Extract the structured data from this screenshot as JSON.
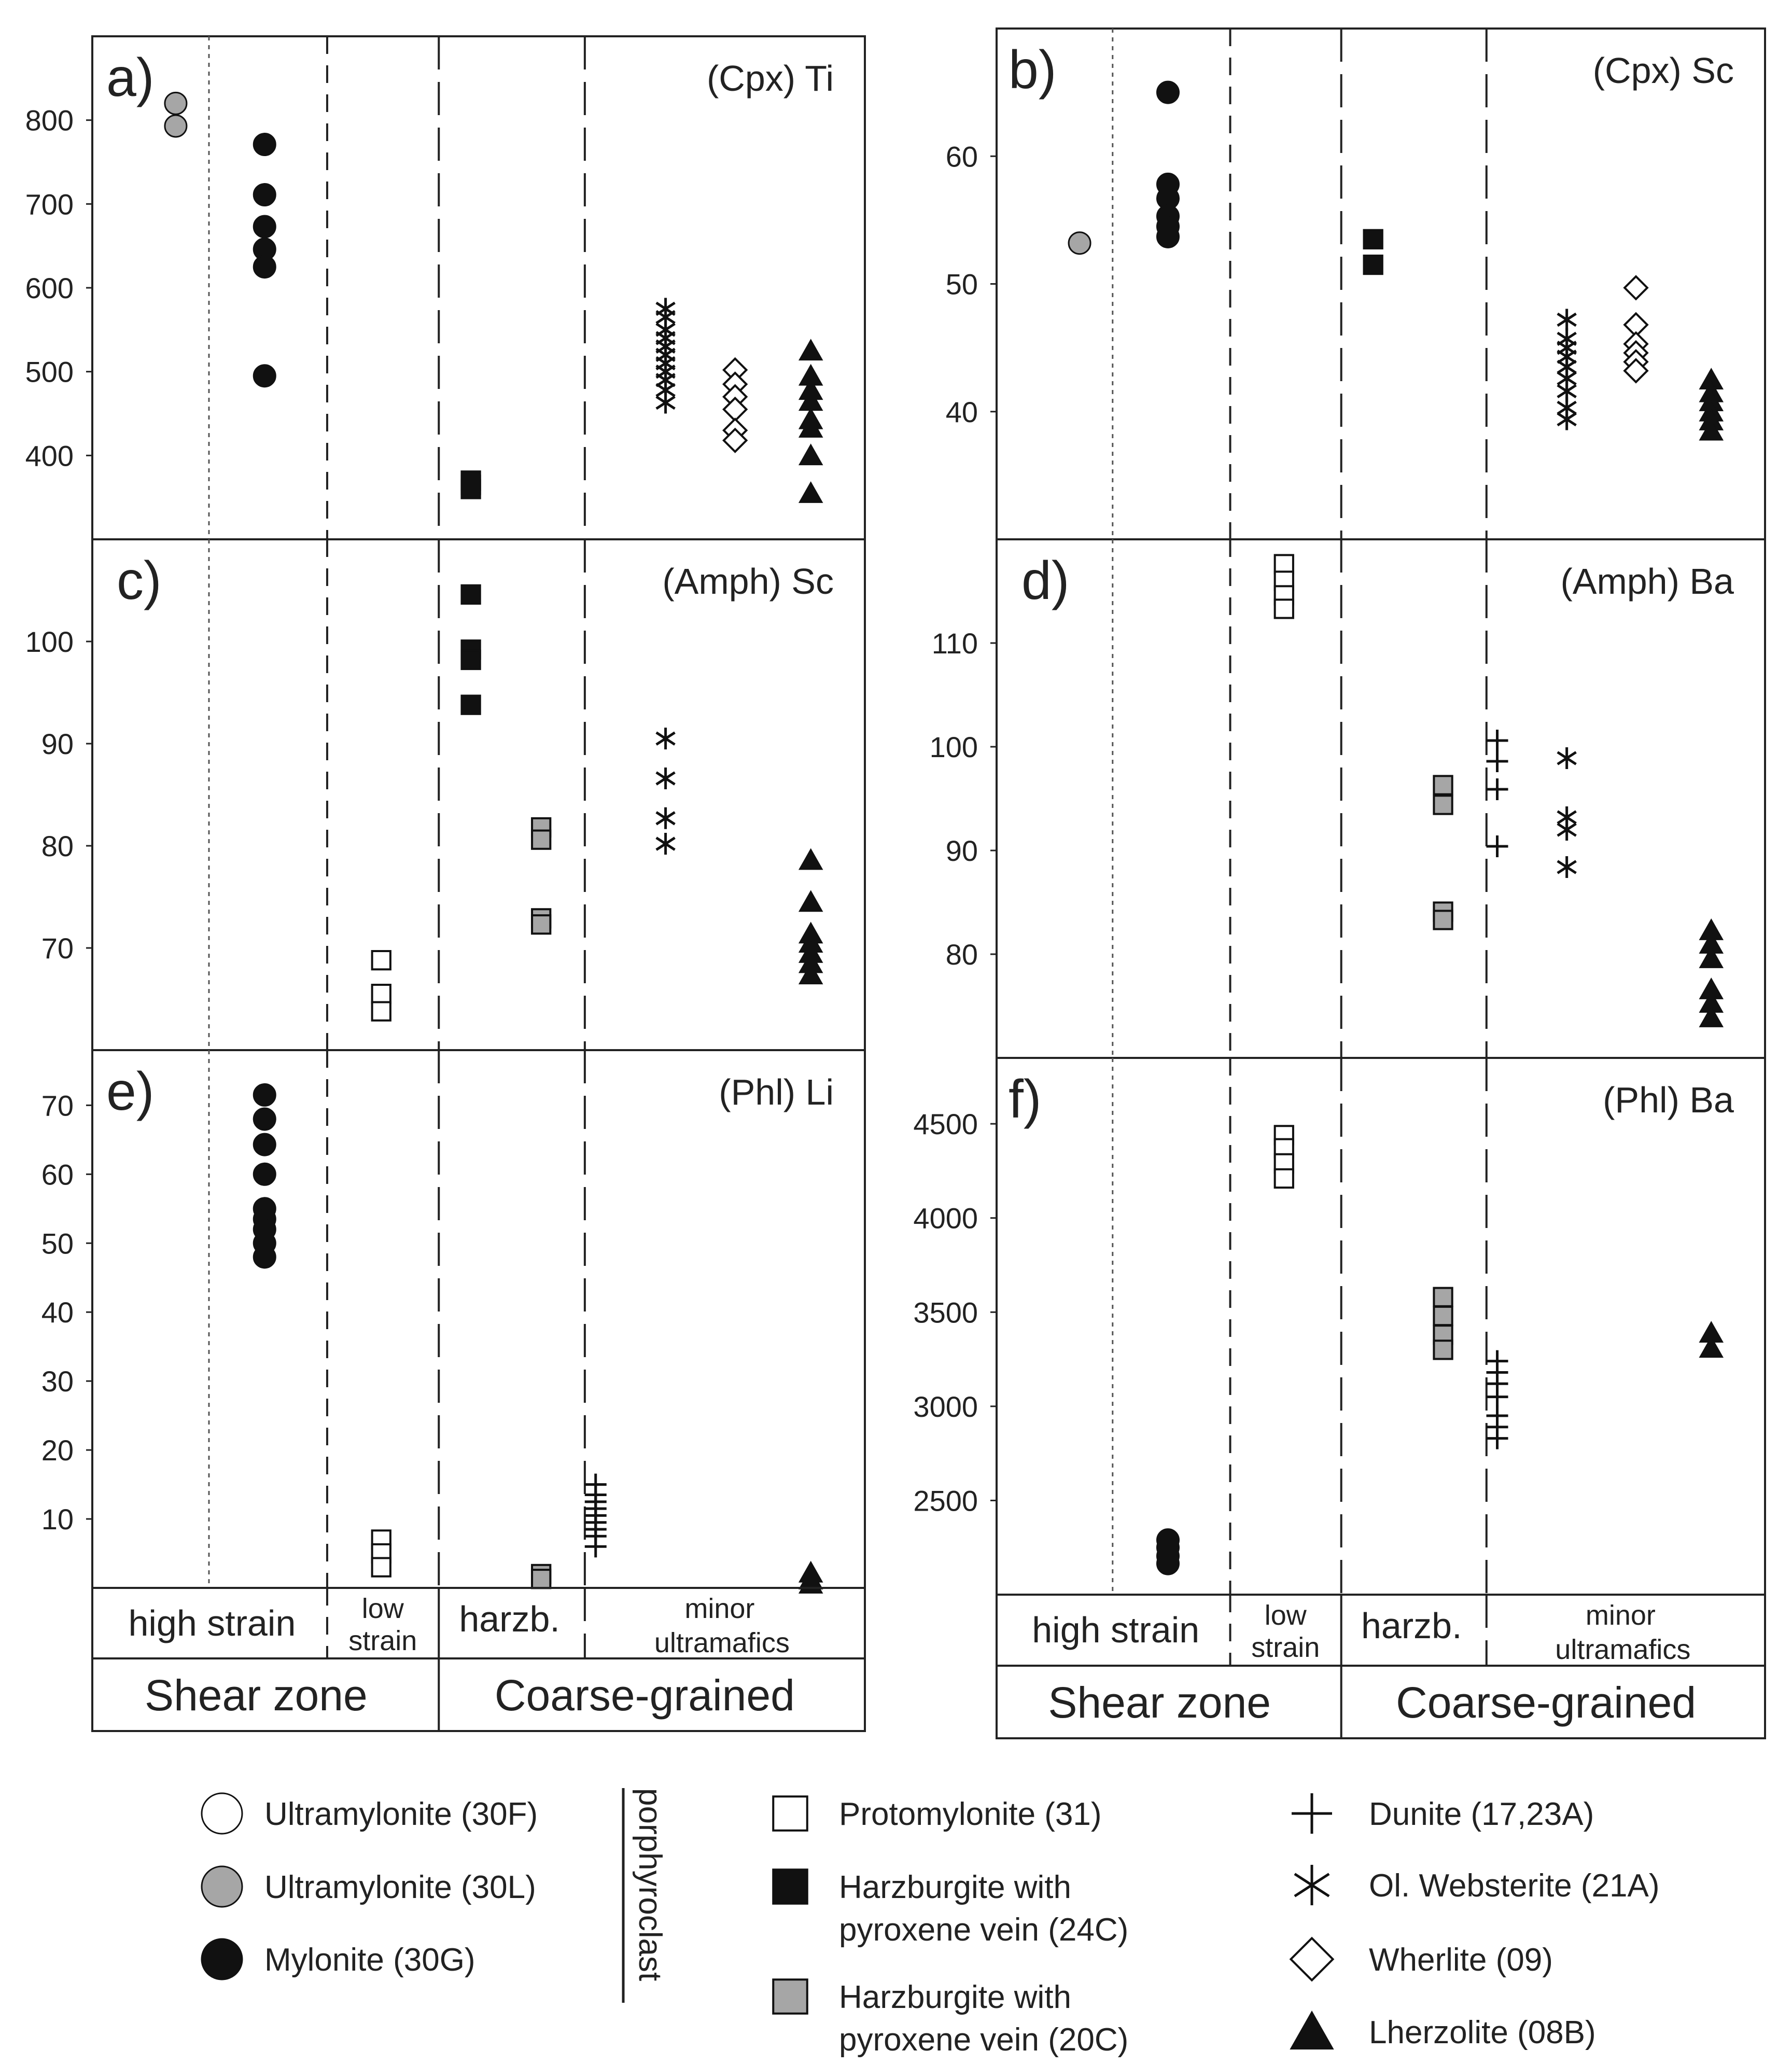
{
  "categories": {
    "shear_zone": {
      "label": "Shear zone",
      "sub": {
        "high_strain": "high strain",
        "low_strain": [
          "low",
          "strain"
        ]
      }
    },
    "coarse_grained": {
      "label": "Coarse-grained",
      "sub": {
        "harzb": "harzb.",
        "minor_ultramafics": [
          "minor",
          "ultramafics"
        ]
      }
    }
  },
  "legend": {
    "porphyroclast_label": "porphyroclast",
    "items": [
      {
        "key": "ultramylonite_30F",
        "label": "Ultramylonite (30F)",
        "marker": "circle",
        "fill": "#ffffff"
      },
      {
        "key": "ultramylonite_30L",
        "label": "Ultramylonite (30L)",
        "marker": "circle",
        "fill": "#a6a6a6"
      },
      {
        "key": "mylonite_30G",
        "label": "Mylonite (30G)",
        "marker": "circle",
        "fill": "#111111"
      },
      {
        "key": "protomylonite_31",
        "label": "Protomylonite (31)",
        "marker": "square",
        "fill": "#ffffff"
      },
      {
        "key": "harzburgite_24C",
        "label": [
          "Harzburgite with",
          "pyroxene vein (24C)"
        ],
        "marker": "square",
        "fill": "#111111"
      },
      {
        "key": "harzburgite_20C",
        "label": [
          "Harzburgite with",
          "pyroxene vein (20C)"
        ],
        "marker": "square",
        "fill": "#a6a6a6"
      },
      {
        "key": "dunite",
        "label": "Dunite (17,23A)",
        "marker": "plus",
        "fill": "#111111"
      },
      {
        "key": "ol_websterite",
        "label": "Ol. Websterite (21A)",
        "marker": "asterisk",
        "fill": "#111111"
      },
      {
        "key": "wherlite",
        "label": "Wherlite (09)",
        "marker": "diamond",
        "fill": "#ffffff"
      },
      {
        "key": "lherzolite",
        "label": "Lherzolite (08B)",
        "marker": "triangle",
        "fill": "#111111"
      }
    ]
  },
  "chart_data": [
    {
      "panel": "a)",
      "title": "(Cpx) Ti",
      "type": "scatter",
      "ylim": [
        300,
        900
      ],
      "yticks": [
        400,
        500,
        600,
        700,
        800
      ],
      "series": [
        {
          "name": "Ultramylonite (30L)",
          "marker": "circle",
          "fill": "#a6a6a6",
          "x": 0.7,
          "values": [
            820,
            793
          ]
        },
        {
          "name": "Mylonite (30G)",
          "marker": "circle",
          "fill": "#111111",
          "x": 1.4,
          "values": [
            771,
            711,
            673,
            646,
            625,
            495
          ]
        },
        {
          "name": "Harzburgite with pyroxene vein (24C)",
          "marker": "square",
          "fill": "#111111",
          "x": 3.3,
          "values": [
            370,
            365,
            360
          ]
        },
        {
          "name": "Ol. Websterite (21A)",
          "marker": "asterisk",
          "fill": "#111111",
          "x": 4.6,
          "values": [
            575,
            565,
            550,
            540,
            530,
            520,
            510,
            500,
            490,
            478,
            463
          ]
        },
        {
          "name": "Wherlite (09)",
          "marker": "diamond",
          "fill": "#ffffff",
          "x": 5.15,
          "values": [
            502,
            485,
            470,
            455,
            430,
            418
          ]
        },
        {
          "name": "Lherzolite (08B)",
          "marker": "triangle",
          "fill": "#111111",
          "x": 5.75,
          "values": [
            525,
            495,
            478,
            465,
            443,
            433,
            400,
            355
          ]
        }
      ]
    },
    {
      "panel": "b)",
      "title": "(Cpx) Sc",
      "type": "scatter",
      "ylim": [
        30,
        70
      ],
      "yticks": [
        40,
        50,
        60
      ],
      "series": [
        {
          "name": "Ultramylonite (30L)",
          "marker": "circle",
          "fill": "#a6a6a6",
          "x": 0.7,
          "values": [
            53.2
          ]
        },
        {
          "name": "Mylonite (30G)",
          "marker": "circle",
          "fill": "#111111",
          "x": 1.4,
          "values": [
            65,
            57.8,
            56.7,
            55.3,
            54.5,
            53.7
          ]
        },
        {
          "name": "Harzburgite with pyroxene vein (24C)",
          "marker": "square",
          "fill": "#111111",
          "x": 3.3,
          "values": [
            53.5,
            51.5
          ]
        },
        {
          "name": "Ol. Websterite (21A)",
          "marker": "asterisk",
          "fill": "#111111",
          "x": 4.6,
          "values": [
            47.2,
            45.7,
            45,
            44.3,
            43.5,
            42.6,
            41.6,
            40.3,
            39.4
          ]
        },
        {
          "name": "Wherlite (09)",
          "marker": "diamond",
          "fill": "#ffffff",
          "x": 5.15,
          "values": [
            49.7,
            46.8,
            45.3,
            44.6,
            43.9,
            43.2
          ]
        },
        {
          "name": "Lherzolite (08B)",
          "marker": "triangle",
          "fill": "#111111",
          "x": 5.75,
          "values": [
            42.5,
            41.5,
            40.8,
            40,
            39.3,
            38.5
          ]
        }
      ]
    },
    {
      "panel": "c)",
      "title": "(Amph) Sc",
      "type": "scatter",
      "ylim": [
        60,
        110
      ],
      "yticks": [
        70,
        80,
        90,
        100
      ],
      "series": [
        {
          "name": "Protomylonite (31)",
          "marker": "square",
          "fill": "#ffffff",
          "x": 2.5,
          "values": [
            68.8,
            65.5,
            63.8
          ]
        },
        {
          "name": "Harzburgite with pyroxene vein (24C)",
          "marker": "square",
          "fill": "#111111",
          "x": 3.3,
          "values": [
            104.6,
            99.2,
            98.2,
            93.8
          ]
        },
        {
          "name": "Harzburgite with pyroxene vein (20C)",
          "marker": "square",
          "fill": "#a6a6a6",
          "x": 3.9,
          "values": [
            81.8,
            80.6,
            72.9,
            72.3
          ]
        },
        {
          "name": "Ol. Websterite (21A)",
          "marker": "asterisk",
          "fill": "#111111",
          "x": 4.6,
          "values": [
            90.5,
            86.6,
            82.7,
            80.2
          ]
        },
        {
          "name": "Lherzolite (08B)",
          "marker": "triangle",
          "fill": "#111111",
          "x": 5.75,
          "values": [
            78.6,
            74.5,
            71.4,
            70.5,
            69.5,
            68.5,
            67.4
          ]
        }
      ]
    },
    {
      "panel": "d)",
      "title": "(Amph) Ba",
      "type": "scatter",
      "ylim": [
        70,
        120
      ],
      "yticks": [
        80,
        90,
        100,
        110
      ],
      "series": [
        {
          "name": "Protomylonite (31)",
          "marker": "square",
          "fill": "#ffffff",
          "x": 2.5,
          "values": [
            117.6,
            116,
            114.6,
            113.3
          ]
        },
        {
          "name": "Harzburgite with pyroxene vein (20C)",
          "marker": "square",
          "fill": "#a6a6a6",
          "x": 3.9,
          "values": [
            96.3,
            94.4,
            84.1,
            83.3
          ]
        },
        {
          "name": "Dunite (17,23A)",
          "marker": "plus",
          "fill": "#111111",
          "x": 4.15,
          "values": [
            100.6,
            98.6,
            95.9,
            90.4
          ]
        },
        {
          "name": "Ol. Websterite (21A)",
          "marker": "asterisk",
          "fill": "#111111",
          "x": 4.6,
          "values": [
            98.9,
            93.2,
            92,
            88.4
          ]
        },
        {
          "name": "Lherzolite (08B)",
          "marker": "triangle",
          "fill": "#111111",
          "x": 5.75,
          "values": [
            82.3,
            81,
            79.6,
            76.6,
            75.3,
            73.9
          ]
        }
      ]
    },
    {
      "panel": "e)",
      "title": "(Phl) Li",
      "type": "scatter",
      "ylim": [
        0,
        78
      ],
      "yticks": [
        10,
        20,
        30,
        40,
        50,
        60,
        70
      ],
      "series": [
        {
          "name": "Mylonite (30G)",
          "marker": "circle",
          "fill": "#111111",
          "x": 1.4,
          "values": [
            71.5,
            68,
            64.3,
            60,
            55,
            53.5,
            52,
            50,
            48
          ]
        },
        {
          "name": "Protomylonite (31)",
          "marker": "square",
          "fill": "#ffffff",
          "x": 2.5,
          "values": [
            7,
            5,
            3
          ]
        },
        {
          "name": "Harzburgite with pyroxene vein (20C)",
          "marker": "square",
          "fill": "#a6a6a6",
          "x": 3.9,
          "values": [
            2,
            1.3
          ]
        },
        {
          "name": "Dunite (17,23A)",
          "marker": "plus",
          "fill": "#111111",
          "x": 4.15,
          "values": [
            15,
            13.5,
            12.5,
            11.5,
            10.5,
            9.5,
            8.5,
            7.5,
            6
          ]
        },
        {
          "name": "Lherzolite (08B)",
          "marker": "triangle",
          "fill": "#111111",
          "x": 5.75,
          "values": [
            2.2,
            1.2,
            0.6
          ]
        }
      ]
    },
    {
      "panel": "f)",
      "title": "(Phl) Ba",
      "type": "scatter",
      "ylim": [
        2000,
        4850
      ],
      "yticks": [
        2500,
        3000,
        3500,
        4000,
        4500
      ],
      "series": [
        {
          "name": "Mylonite (30G)",
          "marker": "circle",
          "fill": "#111111",
          "x": 1.4,
          "values": [
            2290,
            2250,
            2205,
            2165
          ]
        },
        {
          "name": "Protomylonite (31)",
          "marker": "square",
          "fill": "#ffffff",
          "x": 2.5,
          "values": [
            4440,
            4370,
            4290,
            4210
          ]
        },
        {
          "name": "Harzburgite with pyroxene vein (20C)",
          "marker": "square",
          "fill": "#a6a6a6",
          "x": 3.9,
          "values": [
            3580,
            3480,
            3380,
            3300
          ]
        },
        {
          "name": "Dunite (17,23A)",
          "marker": "plus",
          "fill": "#111111",
          "x": 4.15,
          "values": [
            3240,
            3180,
            3120,
            3050,
            2950,
            2890,
            2830
          ]
        },
        {
          "name": "Lherzolite (08B)",
          "marker": "triangle",
          "fill": "#111111",
          "x": 5.75,
          "values": [
            3390,
            3310
          ]
        }
      ]
    }
  ]
}
